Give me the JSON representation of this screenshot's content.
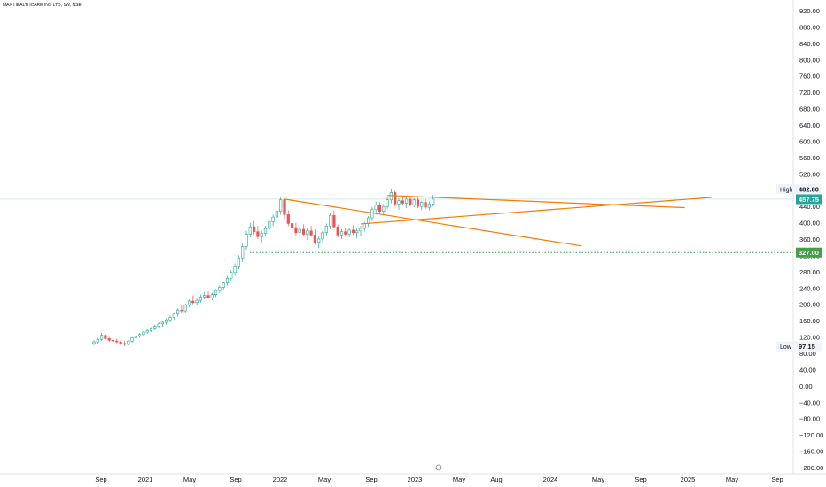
{
  "header": {
    "title": "MAX HEALTHCARE INS LTD, 1W, NSE"
  },
  "colors": {
    "up": "#26a69a",
    "down": "#ef5350",
    "line": "#f57c00",
    "support": "#2e9e48",
    "text": "#131722",
    "grid": "#e0e3eb",
    "price": "#26a69a"
  },
  "icons": {
    "settings": "clock-icon"
  },
  "chart_data": {
    "type": "candlestick",
    "ylim": [
      -200,
      920
    ],
    "y_ticks": [
      "920.00",
      "880.00",
      "840.00",
      "800.00",
      "760.00",
      "720.00",
      "680.00",
      "640.00",
      "600.00",
      "560.00",
      "520.00",
      "480.00",
      "440.00",
      "400.00",
      "360.00",
      "320.00",
      "280.00",
      "240.00",
      "200.00",
      "160.00",
      "120.00",
      "80.00",
      "40.00",
      "0.00",
      "−40.00",
      "−80.00",
      "−120.00",
      "−160.00",
      "−200.00"
    ],
    "x_ticks": [
      "Sep",
      "2021",
      "May",
      "Sep",
      "2022",
      "May",
      "Sep",
      "2023",
      "May",
      "Aug",
      "2024",
      "May",
      "Sep",
      "2025",
      "May",
      "Sep"
    ],
    "high_label": {
      "text": "High",
      "value": "482.80"
    },
    "low_label": {
      "text": "Low",
      "value": "97.15"
    },
    "last_price": "457.75",
    "support_level": "327.00",
    "candles": [
      [
        104,
        112,
        100,
        108
      ],
      [
        108,
        118,
        104,
        114
      ],
      [
        114,
        130,
        110,
        124
      ],
      [
        124,
        128,
        112,
        116
      ],
      [
        116,
        120,
        108,
        112
      ],
      [
        112,
        118,
        106,
        110
      ],
      [
        110,
        116,
        104,
        108
      ],
      [
        108,
        112,
        100,
        104
      ],
      [
        104,
        110,
        97,
        102
      ],
      [
        102,
        112,
        100,
        110
      ],
      [
        110,
        120,
        106,
        118
      ],
      [
        118,
        126,
        114,
        122
      ],
      [
        122,
        130,
        118,
        126
      ],
      [
        126,
        134,
        122,
        132
      ],
      [
        132,
        140,
        128,
        136
      ],
      [
        136,
        144,
        132,
        142
      ],
      [
        142,
        150,
        136,
        146
      ],
      [
        146,
        156,
        142,
        152
      ],
      [
        152,
        160,
        146,
        156
      ],
      [
        156,
        166,
        150,
        162
      ],
      [
        162,
        172,
        156,
        168
      ],
      [
        168,
        180,
        162,
        176
      ],
      [
        176,
        190,
        170,
        186
      ],
      [
        186,
        198,
        178,
        184
      ],
      [
        184,
        202,
        180,
        198
      ],
      [
        198,
        212,
        192,
        208
      ],
      [
        208,
        222,
        200,
        204
      ],
      [
        204,
        214,
        196,
        210
      ],
      [
        210,
        224,
        204,
        218
      ],
      [
        218,
        230,
        212,
        222
      ],
      [
        222,
        232,
        214,
        216
      ],
      [
        216,
        228,
        210,
        224
      ],
      [
        224,
        238,
        218,
        234
      ],
      [
        234,
        246,
        228,
        242
      ],
      [
        242,
        256,
        236,
        252
      ],
      [
        252,
        270,
        246,
        264
      ],
      [
        264,
        284,
        258,
        278
      ],
      [
        278,
        300,
        270,
        294
      ],
      [
        294,
        320,
        286,
        314
      ],
      [
        314,
        350,
        304,
        342
      ],
      [
        342,
        380,
        334,
        372
      ],
      [
        372,
        400,
        364,
        390
      ],
      [
        390,
        404,
        372,
        378
      ],
      [
        378,
        392,
        360,
        366
      ],
      [
        366,
        380,
        350,
        374
      ],
      [
        374,
        392,
        366,
        386
      ],
      [
        386,
        408,
        378,
        402
      ],
      [
        402,
        420,
        392,
        414
      ],
      [
        414,
        434,
        404,
        428
      ],
      [
        428,
        462,
        420,
        456
      ],
      [
        456,
        458,
        410,
        420
      ],
      [
        420,
        430,
        392,
        398
      ],
      [
        398,
        412,
        380,
        388
      ],
      [
        388,
        400,
        368,
        376
      ],
      [
        376,
        390,
        362,
        384
      ],
      [
        384,
        396,
        368,
        372
      ],
      [
        372,
        386,
        358,
        380
      ],
      [
        380,
        392,
        366,
        370
      ],
      [
        370,
        384,
        346,
        352
      ],
      [
        352,
        366,
        338,
        360
      ],
      [
        360,
        380,
        352,
        376
      ],
      [
        376,
        398,
        368,
        392
      ],
      [
        392,
        424,
        384,
        418
      ],
      [
        418,
        430,
        386,
        390
      ],
      [
        390,
        396,
        364,
        370
      ],
      [
        370,
        384,
        360,
        378
      ],
      [
        378,
        388,
        366,
        372
      ],
      [
        372,
        386,
        364,
        382
      ],
      [
        382,
        394,
        370,
        376
      ],
      [
        376,
        388,
        362,
        380
      ],
      [
        380,
        392,
        368,
        386
      ],
      [
        386,
        402,
        378,
        398
      ],
      [
        398,
        416,
        390,
        412
      ],
      [
        412,
        438,
        404,
        432
      ],
      [
        432,
        452,
        420,
        444
      ],
      [
        444,
        450,
        420,
        428
      ],
      [
        428,
        446,
        420,
        440
      ],
      [
        440,
        462,
        434,
        456
      ],
      [
        456,
        482,
        448,
        474
      ],
      [
        474,
        478,
        440,
        446
      ],
      [
        446,
        460,
        432,
        454
      ],
      [
        454,
        466,
        442,
        448
      ],
      [
        448,
        462,
        436,
        458
      ],
      [
        458,
        466,
        440,
        444
      ],
      [
        444,
        460,
        438,
        456
      ],
      [
        456,
        464,
        436,
        440
      ],
      [
        440,
        454,
        432,
        450
      ],
      [
        450,
        458,
        434,
        438
      ],
      [
        438,
        452,
        430,
        446
      ],
      [
        446,
        468,
        440,
        457.75
      ]
    ],
    "trendlines": [
      {
        "from": [
          50,
          458
        ],
        "to": [
          128,
          343
        ]
      },
      {
        "from": [
          77,
          467
        ],
        "to": [
          155,
          437
        ]
      },
      {
        "from": [
          70,
          397
        ],
        "to": [
          162,
          462
        ]
      }
    ]
  }
}
